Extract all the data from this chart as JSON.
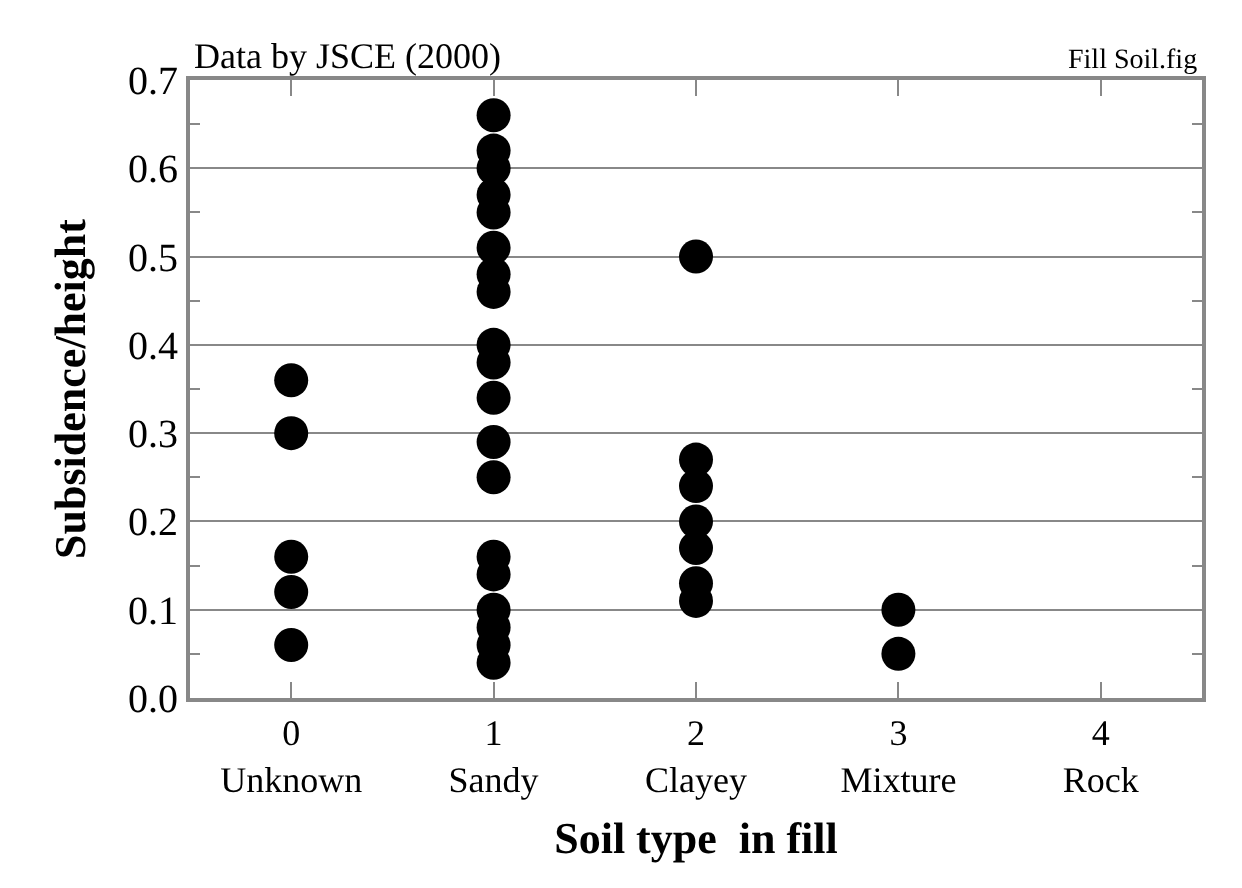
{
  "chart_data": {
    "type": "scatter",
    "xlabel": "Soil type  in fill",
    "ylabel": "Subsidence/height",
    "annotations": [
      "Data by JSCE (2000)",
      "Fill Soil.fig"
    ],
    "series": [
      {
        "color": "#000000",
        "x": [
          0,
          0,
          0,
          0,
          0,
          1,
          1,
          1,
          1,
          1,
          1,
          1,
          1,
          1,
          1,
          1,
          1,
          1,
          1,
          1,
          1,
          1,
          1,
          1,
          2,
          2,
          2,
          2,
          2,
          2,
          2,
          3,
          3
        ],
        "values": [
          0.36,
          0.3,
          0.16,
          0.12,
          0.06,
          0.66,
          0.62,
          0.6,
          0.57,
          0.55,
          0.51,
          0.48,
          0.46,
          0.4,
          0.38,
          0.34,
          0.29,
          0.25,
          0.16,
          0.14,
          0.1,
          0.08,
          0.06,
          0.04,
          0.5,
          0.27,
          0.24,
          0.2,
          0.17,
          0.13,
          0.11,
          0.1,
          0.05
        ]
      }
    ],
    "marker": "circle",
    "grid": "y",
    "legend": false,
    "xlim": [
      -0.5,
      4.5
    ],
    "xticks": [
      {
        "value": 0,
        "label": "0\nUnknown"
      },
      {
        "value": 1,
        "label": "1\nSandy"
      },
      {
        "value": 2,
        "label": "2\nClayey"
      },
      {
        "value": 3,
        "label": "3\nMixture"
      },
      {
        "value": 4,
        "label": "4\nRock"
      }
    ],
    "ylim": [
      0,
      0.7
    ],
    "yticks": [
      "0.0",
      {
        "value": 0.05,
        "label": null
      },
      {
        "value": 0.1,
        "label": "0.1"
      },
      {
        "value": 0.15,
        "label": null
      },
      {
        "value": 0.2,
        "label": "0.2"
      },
      {
        "value": 0.25,
        "label": null
      },
      {
        "value": 0.3,
        "label": "0.3"
      },
      {
        "value": 0.35,
        "label": null
      },
      {
        "value": 0.4,
        "label": "0.4"
      },
      {
        "value": 0.45,
        "label": null
      },
      {
        "value": 0.5,
        "label": "0.5"
      },
      {
        "value": 0.55,
        "label": null
      },
      {
        "value": 0.6,
        "label": "0.6"
      },
      {
        "value": 0.65,
        "label": null
      },
      {
        "value": 0.7,
        "label": "0.7"
      }
    ]
  }
}
